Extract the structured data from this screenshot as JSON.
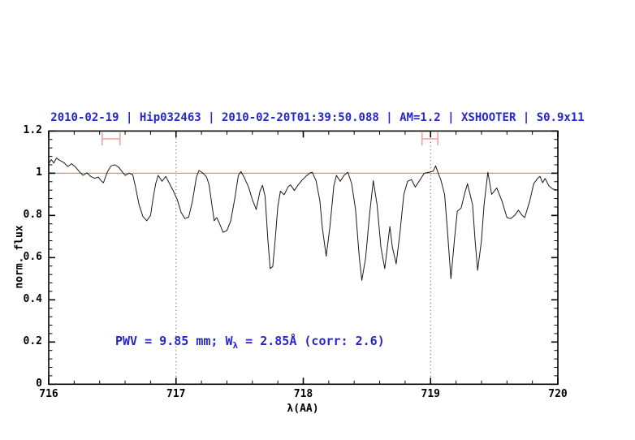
{
  "title": "2010-02-19 | Hip032463 | 2010-02-20T01:39:50.088 | AM=1.2 | XSHOOTER | S0.9x11",
  "annotation": {
    "prefix": "PWV = 9.85 mm; W",
    "subscript": "λ",
    "suffix": " = 2.85Å (corr: 2.6)"
  },
  "colors": {
    "title_blue": "#2626cf",
    "continuum_red": "#ee8181",
    "marker_red": "#f3a6a6",
    "curve_black": "#1a1a1a",
    "dotted_gray": "#444444"
  },
  "chart_data": {
    "type": "line",
    "title": "2010-02-19 | Hip032463 | 2010-02-20T01:39:50.088 | AM=1.2 | XSHOOTER | S0.9x11",
    "xlabel": "λ(AA)",
    "ylabel": "norm. flux",
    "xlim": [
      716,
      720
    ],
    "ylim": [
      0,
      1.2
    ],
    "grid": false,
    "x_major_ticks": [
      716,
      717,
      718,
      719,
      720
    ],
    "x_tick_labels": [
      "716",
      "717",
      "718",
      "719",
      "720"
    ],
    "x_minor_step": 0.2,
    "y_major_ticks": [
      0,
      0.2,
      0.4,
      0.6,
      0.8,
      1,
      1.2
    ],
    "y_tick_labels": [
      "0",
      "0.2",
      "0.4",
      "0.6",
      "0.8",
      "1",
      "1.2"
    ],
    "y_minor_step": 0.04,
    "continuum_level": 1.0,
    "dotted_vlines": [
      717,
      719
    ],
    "telluric_markers": [
      {
        "center": 716.49,
        "half_width": 0.07,
        "y": 1.163,
        "cap_half_height": 0.031
      },
      {
        "center": 718.995,
        "half_width": 0.062,
        "y": 1.163,
        "cap_half_height": 0.031
      }
    ],
    "series": [
      {
        "name": "normalized-spectrum",
        "points": [
          [
            716.0,
            1.045
          ],
          [
            716.02,
            1.065
          ],
          [
            716.04,
            1.048
          ],
          [
            716.06,
            1.072
          ],
          [
            716.09,
            1.06
          ],
          [
            716.12,
            1.05
          ],
          [
            716.15,
            1.032
          ],
          [
            716.18,
            1.045
          ],
          [
            716.21,
            1.03
          ],
          [
            716.24,
            1.008
          ],
          [
            716.27,
            0.99
          ],
          [
            716.3,
            1.002
          ],
          [
            716.33,
            0.985
          ],
          [
            716.36,
            0.976
          ],
          [
            716.39,
            0.982
          ],
          [
            716.41,
            0.965
          ],
          [
            716.43,
            0.955
          ],
          [
            716.46,
            1.005
          ],
          [
            716.49,
            1.035
          ],
          [
            716.52,
            1.04
          ],
          [
            716.55,
            1.028
          ],
          [
            716.58,
            1.005
          ],
          [
            716.6,
            0.99
          ],
          [
            716.63,
            1.0
          ],
          [
            716.66,
            0.993
          ],
          [
            716.68,
            0.94
          ],
          [
            716.71,
            0.85
          ],
          [
            716.74,
            0.795
          ],
          [
            716.77,
            0.775
          ],
          [
            716.8,
            0.8
          ],
          [
            716.82,
            0.88
          ],
          [
            716.84,
            0.95
          ],
          [
            716.86,
            0.99
          ],
          [
            716.89,
            0.962
          ],
          [
            716.92,
            0.985
          ],
          [
            716.95,
            0.95
          ],
          [
            716.98,
            0.915
          ],
          [
            717.01,
            0.875
          ],
          [
            717.04,
            0.815
          ],
          [
            717.07,
            0.785
          ],
          [
            717.1,
            0.792
          ],
          [
            717.13,
            0.87
          ],
          [
            717.16,
            0.98
          ],
          [
            717.18,
            1.013
          ],
          [
            717.21,
            1.002
          ],
          [
            717.24,
            0.982
          ],
          [
            717.26,
            0.945
          ],
          [
            717.28,
            0.86
          ],
          [
            717.3,
            0.775
          ],
          [
            717.32,
            0.79
          ],
          [
            717.34,
            0.765
          ],
          [
            717.37,
            0.72
          ],
          [
            717.4,
            0.728
          ],
          [
            717.43,
            0.775
          ],
          [
            717.46,
            0.875
          ],
          [
            717.49,
            0.99
          ],
          [
            717.51,
            1.008
          ],
          [
            717.54,
            0.975
          ],
          [
            717.57,
            0.935
          ],
          [
            717.6,
            0.875
          ],
          [
            717.63,
            0.828
          ],
          [
            717.66,
            0.915
          ],
          [
            717.68,
            0.943
          ],
          [
            717.7,
            0.89
          ],
          [
            717.72,
            0.7
          ],
          [
            717.74,
            0.548
          ],
          [
            717.76,
            0.558
          ],
          [
            717.78,
            0.69
          ],
          [
            717.8,
            0.84
          ],
          [
            717.82,
            0.915
          ],
          [
            717.85,
            0.898
          ],
          [
            717.88,
            0.935
          ],
          [
            717.9,
            0.945
          ],
          [
            717.93,
            0.918
          ],
          [
            717.96,
            0.945
          ],
          [
            717.99,
            0.967
          ],
          [
            718.02,
            0.985
          ],
          [
            718.05,
            1.0
          ],
          [
            718.07,
            1.005
          ],
          [
            718.1,
            0.965
          ],
          [
            718.13,
            0.87
          ],
          [
            718.15,
            0.74
          ],
          [
            718.18,
            0.607
          ],
          [
            718.21,
            0.75
          ],
          [
            718.24,
            0.94
          ],
          [
            718.26,
            0.99
          ],
          [
            718.29,
            0.962
          ],
          [
            718.32,
            0.99
          ],
          [
            718.35,
            1.005
          ],
          [
            718.38,
            0.95
          ],
          [
            718.41,
            0.83
          ],
          [
            718.44,
            0.6
          ],
          [
            718.46,
            0.492
          ],
          [
            718.49,
            0.6
          ],
          [
            718.52,
            0.8
          ],
          [
            718.55,
            0.965
          ],
          [
            718.58,
            0.85
          ],
          [
            718.61,
            0.65
          ],
          [
            718.64,
            0.548
          ],
          [
            718.66,
            0.65
          ],
          [
            718.68,
            0.747
          ],
          [
            718.7,
            0.65
          ],
          [
            718.73,
            0.57
          ],
          [
            718.76,
            0.72
          ],
          [
            718.79,
            0.9
          ],
          [
            718.82,
            0.962
          ],
          [
            718.85,
            0.97
          ],
          [
            718.88,
            0.934
          ],
          [
            718.91,
            0.962
          ],
          [
            718.95,
            1.0
          ],
          [
            718.99,
            1.005
          ],
          [
            719.02,
            1.01
          ],
          [
            719.04,
            1.035
          ],
          [
            719.06,
            1.0
          ],
          [
            719.08,
            0.97
          ],
          [
            719.11,
            0.9
          ],
          [
            719.13,
            0.75
          ],
          [
            719.16,
            0.5
          ],
          [
            719.19,
            0.7
          ],
          [
            719.21,
            0.82
          ],
          [
            719.24,
            0.835
          ],
          [
            719.27,
            0.91
          ],
          [
            719.29,
            0.95
          ],
          [
            719.33,
            0.85
          ],
          [
            719.35,
            0.68
          ],
          [
            719.37,
            0.54
          ],
          [
            719.4,
            0.68
          ],
          [
            719.42,
            0.85
          ],
          [
            719.45,
            1.005
          ],
          [
            719.48,
            0.9
          ],
          [
            719.52,
            0.93
          ],
          [
            719.56,
            0.87
          ],
          [
            719.6,
            0.79
          ],
          [
            719.63,
            0.785
          ],
          [
            719.66,
            0.8
          ],
          [
            719.69,
            0.825
          ],
          [
            719.72,
            0.8
          ],
          [
            719.74,
            0.79
          ],
          [
            719.78,
            0.87
          ],
          [
            719.81,
            0.95
          ],
          [
            719.84,
            0.975
          ],
          [
            719.86,
            0.985
          ],
          [
            719.88,
            0.955
          ],
          [
            719.9,
            0.975
          ],
          [
            719.93,
            0.94
          ],
          [
            719.96,
            0.925
          ],
          [
            720.0,
            0.92
          ]
        ]
      }
    ]
  }
}
